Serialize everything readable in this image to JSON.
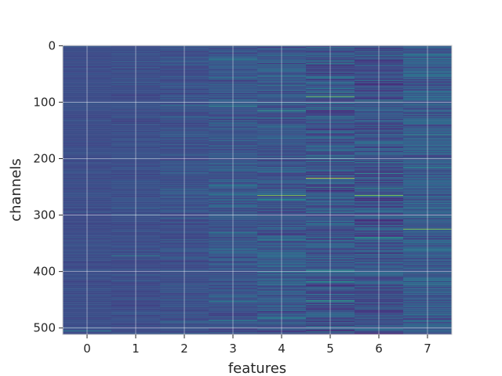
{
  "chart_data": {
    "type": "heatmap",
    "title": "",
    "xlabel": "features",
    "ylabel": "channels",
    "x_tick_labels": [
      "0",
      "1",
      "2",
      "3",
      "4",
      "5",
      "6",
      "7"
    ],
    "y_tick_labels": [
      "0",
      "100",
      "200",
      "300",
      "400",
      "500"
    ],
    "x_ticks": [
      0,
      1,
      2,
      3,
      4,
      5,
      6,
      7
    ],
    "y_ticks": [
      0,
      100,
      200,
      300,
      400,
      500
    ],
    "xlim": [
      -0.5,
      7.5
    ],
    "ylim": [
      511.5,
      -0.5
    ],
    "n_rows": 512,
    "n_cols": 8,
    "grid": true,
    "colormap": "viridis",
    "column_base": [
      0.24,
      0.24,
      0.25,
      0.27,
      0.27,
      0.26,
      0.25,
      0.29
    ],
    "column_spread": [
      0.03,
      0.04,
      0.06,
      0.09,
      0.11,
      0.14,
      0.13,
      0.11
    ],
    "bright_cells": [
      {
        "col": 4,
        "row": 265,
        "value": 0.85
      },
      {
        "col": 5,
        "row": 90,
        "value": 0.8
      },
      {
        "col": 5,
        "row": 235,
        "value": 0.97
      },
      {
        "col": 5,
        "row": 452,
        "value": 0.65
      },
      {
        "col": 6,
        "row": 98,
        "value": 0.55
      },
      {
        "col": 6,
        "row": 265,
        "value": 0.85
      },
      {
        "col": 6,
        "row": 340,
        "value": 0.6
      },
      {
        "col": 7,
        "row": 325,
        "value": 0.85
      },
      {
        "col": 7,
        "row": 158,
        "value": 0.55
      },
      {
        "col": 3,
        "row": 107,
        "value": 0.55
      },
      {
        "col": 4,
        "row": 115,
        "value": 0.6
      },
      {
        "col": 1,
        "row": 372,
        "value": 0.45
      },
      {
        "col": 0,
        "row": 505,
        "value": 0.5
      },
      {
        "col": 3,
        "row": 25,
        "value": 0.5
      }
    ],
    "colors": {
      "grid": "#ffffff",
      "spine": "#cccccc",
      "tick": "#262626"
    }
  }
}
